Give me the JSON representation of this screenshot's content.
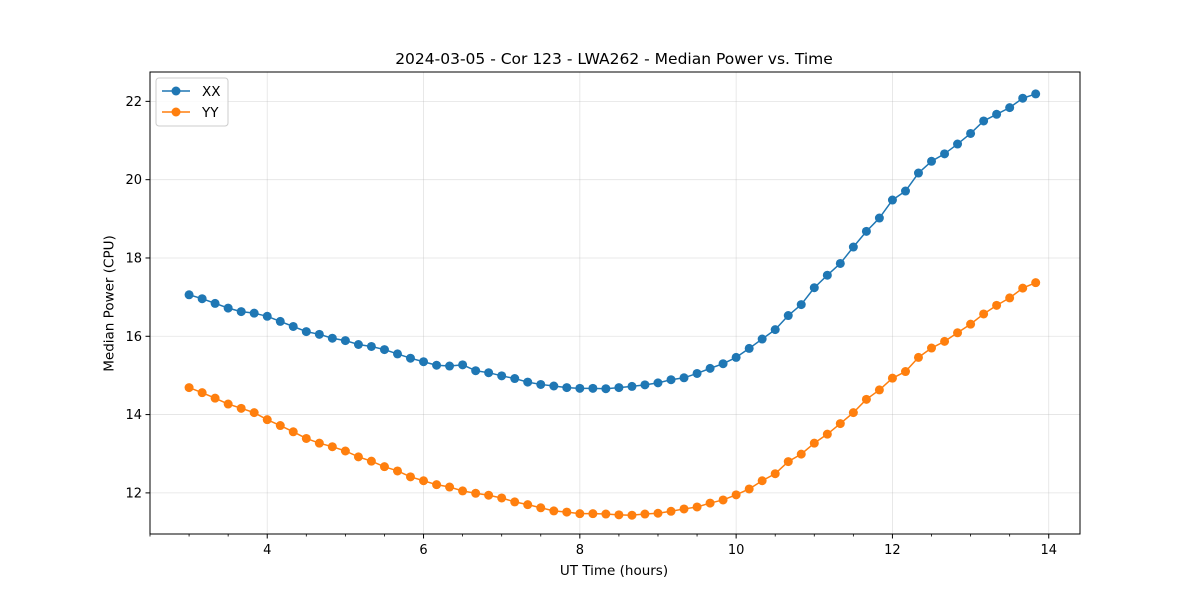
{
  "chart_data": {
    "type": "line",
    "title": "2024-03-05 - Cor 123 - LWA262 - Median Power vs. Time",
    "xlabel": "UT Time (hours)",
    "ylabel": "Median Power (CPU)",
    "xlim": [
      2.5,
      14.4
    ],
    "ylim": [
      10.95,
      22.75
    ],
    "xticks": [
      4,
      6,
      8,
      10,
      12,
      14
    ],
    "xticklabels": [
      "4",
      "6",
      "8",
      "10",
      "12",
      "14"
    ],
    "xminor_step": 0.5,
    "yticks": [
      12,
      14,
      16,
      18,
      20,
      22
    ],
    "yticklabels": [
      "12",
      "14",
      "16",
      "18",
      "20",
      "22"
    ],
    "grid": true,
    "legend_position": "top-left",
    "x": [
      3.0,
      3.167,
      3.333,
      3.5,
      3.667,
      3.833,
      4.0,
      4.167,
      4.333,
      4.5,
      4.667,
      4.833,
      5.0,
      5.167,
      5.333,
      5.5,
      5.667,
      5.833,
      6.0,
      6.167,
      6.333,
      6.5,
      6.667,
      6.833,
      7.0,
      7.167,
      7.333,
      7.5,
      7.667,
      7.833,
      8.0,
      8.167,
      8.333,
      8.5,
      8.667,
      8.833,
      9.0,
      9.167,
      9.333,
      9.5,
      9.667,
      9.833,
      10.0,
      10.167,
      10.333,
      10.5,
      10.667,
      10.833,
      11.0,
      11.167,
      11.333,
      11.5,
      11.667,
      11.833,
      12.0,
      12.167,
      12.333,
      12.5,
      12.667,
      12.833,
      13.0,
      13.167,
      13.333,
      13.5,
      13.667,
      13.833
    ],
    "series": [
      {
        "name": "XX",
        "color": "#1f77b4",
        "values": [
          17.06,
          16.96,
          16.84,
          16.72,
          16.63,
          16.59,
          16.51,
          16.38,
          16.25,
          16.12,
          16.05,
          15.95,
          15.89,
          15.79,
          15.74,
          15.66,
          15.55,
          15.44,
          15.35,
          15.26,
          15.24,
          15.27,
          15.12,
          15.07,
          14.99,
          14.92,
          14.83,
          14.77,
          14.73,
          14.69,
          14.67,
          14.67,
          14.66,
          14.69,
          14.72,
          14.76,
          14.81,
          14.89,
          14.94,
          15.05,
          15.18,
          15.3,
          15.46,
          15.69,
          15.93,
          16.17,
          16.53,
          16.81,
          17.24,
          17.56,
          17.86,
          18.28,
          18.68,
          19.02,
          19.48,
          19.71,
          20.17,
          20.47,
          20.66,
          20.91,
          21.18,
          21.5,
          21.67,
          21.84,
          22.08,
          22.19
        ]
      },
      {
        "name": "YY",
        "color": "#ff7f0e",
        "values": [
          14.69,
          14.56,
          14.42,
          14.27,
          14.16,
          14.05,
          13.87,
          13.72,
          13.56,
          13.39,
          13.27,
          13.18,
          13.07,
          12.92,
          12.81,
          12.67,
          12.56,
          12.41,
          12.31,
          12.21,
          12.15,
          12.05,
          11.99,
          11.94,
          11.87,
          11.77,
          11.7,
          11.62,
          11.54,
          11.51,
          11.47,
          11.47,
          11.46,
          11.44,
          11.43,
          11.46,
          11.48,
          11.53,
          11.59,
          11.64,
          11.74,
          11.82,
          11.95,
          12.1,
          12.31,
          12.49,
          12.8,
          12.99,
          13.27,
          13.5,
          13.77,
          14.05,
          14.39,
          14.63,
          14.93,
          15.1,
          15.46,
          15.7,
          15.87,
          16.09,
          16.31,
          16.57,
          16.79,
          16.98,
          17.23,
          17.37
        ]
      }
    ]
  }
}
